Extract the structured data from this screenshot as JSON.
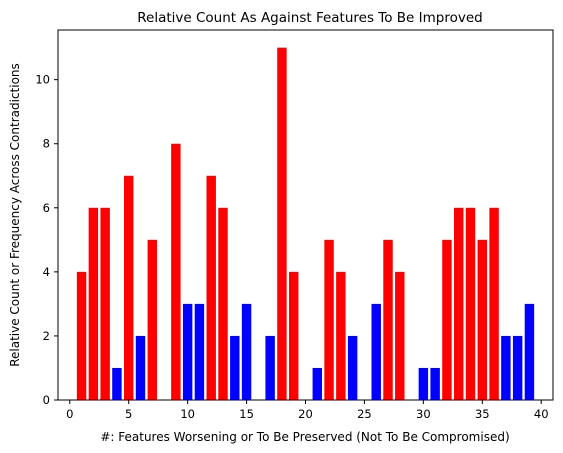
{
  "chart_data": {
    "type": "bar",
    "title": "Relative Count As Against Features To Be Improved",
    "xlabel": "#: Features Worsening or To Be Preserved (Not To Be Compromised)",
    "ylabel": "Relative Count or Frequency Across Contradictions",
    "xlim": [
      -1,
      41
    ],
    "ylim": [
      0,
      11.55
    ],
    "xticks": [
      0,
      5,
      10,
      15,
      20,
      25,
      30,
      35,
      40
    ],
    "yticks": [
      0,
      2,
      4,
      6,
      8,
      10
    ],
    "grid": false,
    "colors": {
      "high": "#ff0000",
      "low": "#0000ff"
    },
    "bars": [
      {
        "x": 1,
        "value": 4,
        "color": "high"
      },
      {
        "x": 2,
        "value": 6,
        "color": "high"
      },
      {
        "x": 3,
        "value": 6,
        "color": "high"
      },
      {
        "x": 4,
        "value": 1,
        "color": "low"
      },
      {
        "x": 5,
        "value": 7,
        "color": "high"
      },
      {
        "x": 6,
        "value": 2,
        "color": "low"
      },
      {
        "x": 7,
        "value": 5,
        "color": "high"
      },
      {
        "x": 9,
        "value": 8,
        "color": "high"
      },
      {
        "x": 10,
        "value": 3,
        "color": "low"
      },
      {
        "x": 11,
        "value": 3,
        "color": "low"
      },
      {
        "x": 12,
        "value": 7,
        "color": "high"
      },
      {
        "x": 13,
        "value": 6,
        "color": "high"
      },
      {
        "x": 14,
        "value": 2,
        "color": "low"
      },
      {
        "x": 15,
        "value": 3,
        "color": "low"
      },
      {
        "x": 17,
        "value": 2,
        "color": "low"
      },
      {
        "x": 18,
        "value": 11,
        "color": "high"
      },
      {
        "x": 19,
        "value": 4,
        "color": "high"
      },
      {
        "x": 21,
        "value": 1,
        "color": "low"
      },
      {
        "x": 22,
        "value": 5,
        "color": "high"
      },
      {
        "x": 23,
        "value": 4,
        "color": "high"
      },
      {
        "x": 24,
        "value": 2,
        "color": "low"
      },
      {
        "x": 26,
        "value": 3,
        "color": "low"
      },
      {
        "x": 27,
        "value": 5,
        "color": "high"
      },
      {
        "x": 28,
        "value": 4,
        "color": "high"
      },
      {
        "x": 30,
        "value": 1,
        "color": "low"
      },
      {
        "x": 31,
        "value": 1,
        "color": "low"
      },
      {
        "x": 32,
        "value": 5,
        "color": "high"
      },
      {
        "x": 33,
        "value": 6,
        "color": "high"
      },
      {
        "x": 34,
        "value": 6,
        "color": "high"
      },
      {
        "x": 35,
        "value": 5,
        "color": "high"
      },
      {
        "x": 36,
        "value": 6,
        "color": "high"
      },
      {
        "x": 37,
        "value": 2,
        "color": "low"
      },
      {
        "x": 38,
        "value": 2,
        "color": "low"
      },
      {
        "x": 39,
        "value": 3,
        "color": "low"
      }
    ]
  }
}
